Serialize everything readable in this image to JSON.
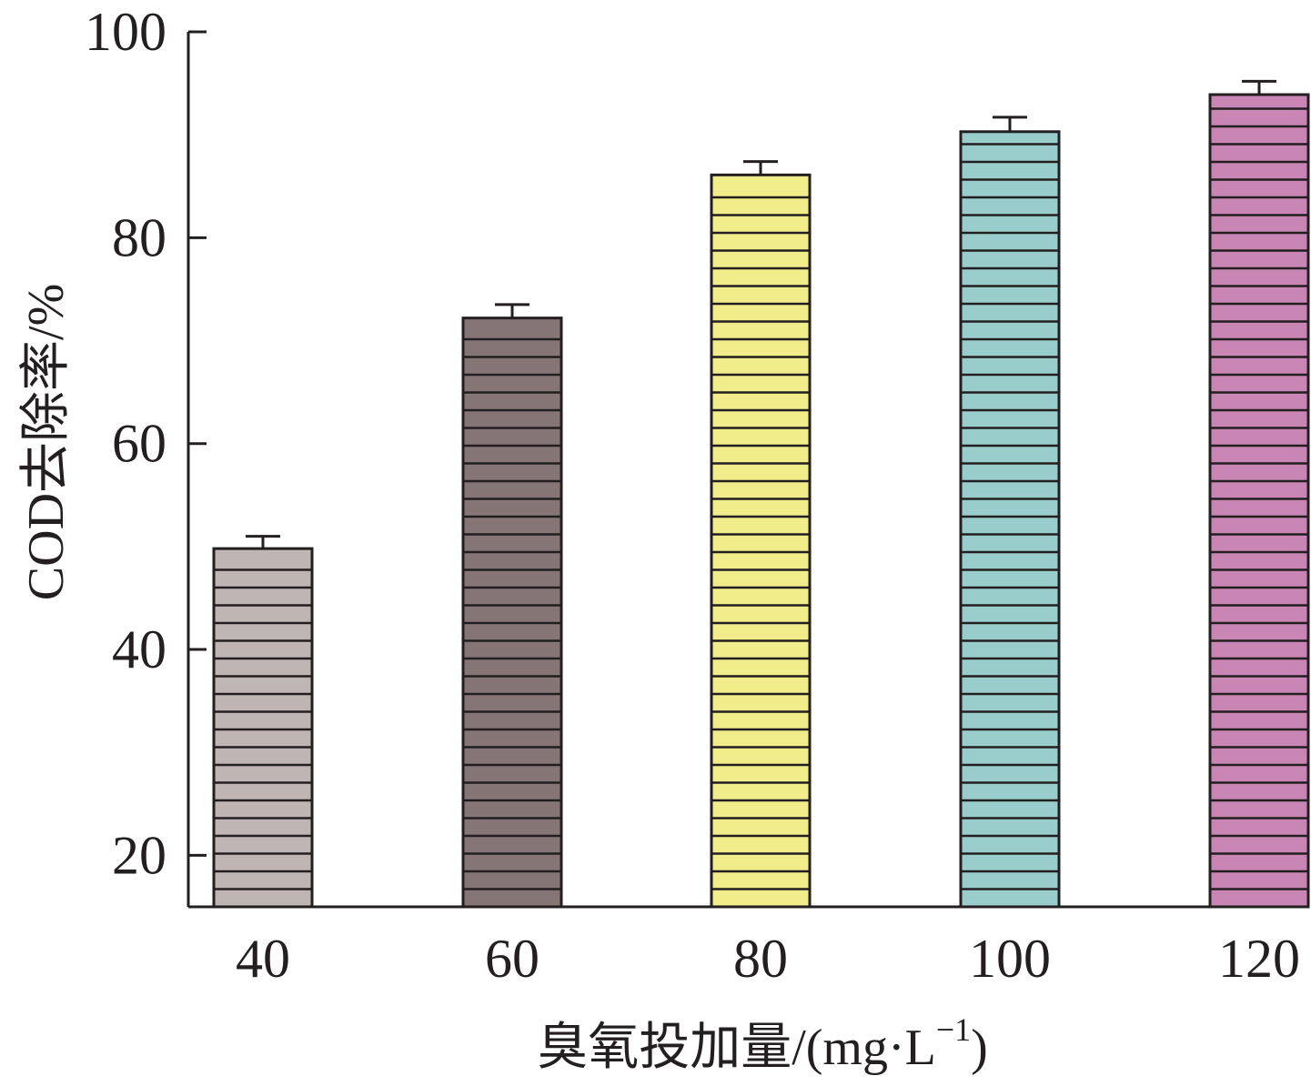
{
  "chart_data": {
    "type": "bar",
    "categories": [
      "40",
      "60",
      "80",
      "100",
      "120"
    ],
    "values": [
      49.8,
      72.2,
      86.1,
      90.3,
      93.9
    ],
    "errors": [
      1.2,
      1.3,
      1.3,
      1.4,
      1.3
    ],
    "colors": [
      "#bfb5b2",
      "#857675",
      "#f1ed8a",
      "#99cdcb",
      "#c985b4"
    ],
    "fill_pattern": "horizontal-stripes",
    "xlabel": "臭氧投加量/(mg·L",
    "xlabel_sup": "−1",
    "xlabel_close": ")",
    "ylabel": "COD去除率/%",
    "yticks": [
      "20",
      "40",
      "60",
      "80",
      "100"
    ],
    "ylim": [
      15,
      100
    ],
    "grid": false,
    "legend": "none"
  }
}
